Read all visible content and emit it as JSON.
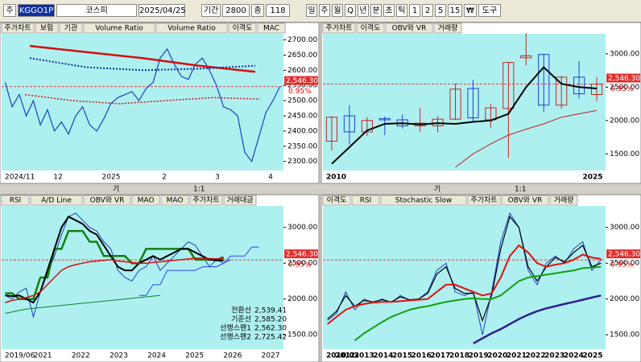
{
  "toolbar": [
    "주",
    "KGGO1P",
    "코스피",
    "2025/04/25",
    "기간",
    "2800",
    "종",
    "118",
    "일",
    "주",
    "월",
    "Q",
    "년",
    "분",
    "초",
    "틱",
    "1",
    "2",
    "5",
    "15",
    "₩",
    "도구"
  ],
  "scroll_labels": [
    "기",
    "1:1"
  ],
  "panes": [
    {
      "tabs": [
        "주가차트",
        "보험",
        "기관",
        "Volume Ratio",
        "Volume Ratio",
        "이격도",
        "MAC"
      ],
      "ylim": [
        2270,
        2720
      ],
      "yticks": [
        {
          "value": 2700,
          "label": "2700.00"
        },
        {
          "value": 2650,
          "label": "2650.00"
        },
        {
          "value": 2600,
          "label": "2600.00"
        },
        {
          "value": 2550,
          "label": "2550.00"
        },
        {
          "value": 2500,
          "label": "2500.00"
        },
        {
          "value": 2450,
          "label": "2450.00"
        },
        {
          "value": 2400,
          "label": "2400.00"
        },
        {
          "value": 2350,
          "label": "2350.00"
        },
        {
          "value": 2300,
          "label": "2300.00"
        }
      ],
      "xlabels": [
        "2024/11",
        "12",
        "2025",
        "2",
        "3",
        "4"
      ],
      "price": {
        "value": 2546.3,
        "label": "2,546.30"
      },
      "change": "0.95%",
      "lines": [
        {
          "color": "#2040c0",
          "width": 1.2,
          "values": [
            2560,
            2480,
            2520,
            2450,
            2500,
            2420,
            2470,
            2400,
            2430,
            2390,
            2450,
            2480,
            2420,
            2400,
            2440,
            2490,
            2510,
            2520,
            2530,
            2500,
            2540,
            2560,
            2640,
            2670,
            2620,
            2580,
            2570,
            2620,
            2640,
            2600,
            2550,
            2480,
            2470,
            2450,
            2330,
            2300,
            2380,
            2460,
            2500,
            2546.3
          ]
        },
        {
          "color": "#d01010",
          "width": 2.5,
          "values": [
            2680,
            2660,
            2640,
            2615,
            2595
          ]
        },
        {
          "color": "#1030a0",
          "width": 2,
          "dash": "2 2",
          "values": [
            2640,
            2610,
            2600,
            2605,
            2615
          ]
        },
        {
          "color": "#d01010",
          "width": 1.5,
          "dash": "2 2",
          "values": [
            2520,
            2500,
            2490,
            2500,
            2510,
            2505
          ]
        }
      ],
      "candles": []
    },
    {
      "tabs": [
        "주가차트",
        "이격도",
        "OBV와 VR",
        "거래량"
      ],
      "ylim": [
        1250,
        3300
      ],
      "yticks": [
        {
          "value": 3000,
          "label": "3000.00"
        },
        {
          "value": 2500,
          "label": "2500.00"
        },
        {
          "value": 2000,
          "label": "2000.00"
        },
        {
          "value": 1500,
          "label": "1500.00"
        }
      ],
      "xlabels": [
        "2010",
        "2025"
      ],
      "price": {
        "value": 2546.3,
        "label": "2,546.30"
      },
      "change": "0.95%",
      "lines": [
        {
          "color": "#000000",
          "width": 2,
          "values": [
            1350,
            1600,
            1850,
            1950,
            1960,
            1940,
            1960,
            1950,
            1980,
            2000,
            2100,
            2500,
            2800,
            2550,
            2500,
            2480
          ]
        },
        {
          "color": "#c02020",
          "width": 1,
          "values": [
            null,
            null,
            null,
            null,
            null,
            null,
            null,
            1300,
            1500,
            1650,
            1780,
            1870,
            1950,
            2050,
            2100,
            2150
          ]
        }
      ],
      "candles": [
        [
          1690,
          2060,
          1550,
          2050
        ],
        [
          2070,
          2230,
          1640,
          1830
        ],
        [
          1830,
          2050,
          1770,
          2000
        ],
        [
          2030,
          2060,
          1780,
          2010
        ],
        [
          2010,
          2090,
          1880,
          1920
        ],
        [
          1920,
          2190,
          1830,
          1960
        ],
        [
          1920,
          2070,
          1820,
          2020
        ],
        [
          2020,
          2560,
          2010,
          2470
        ],
        [
          2480,
          2610,
          1990,
          2040
        ],
        [
          2010,
          2250,
          1890,
          2190
        ],
        [
          2180,
          2870,
          1440,
          2870
        ],
        [
          2940,
          3310,
          2830,
          2970
        ],
        [
          2990,
          3000,
          2130,
          2230
        ],
        [
          2230,
          2670,
          2180,
          2650
        ],
        [
          2650,
          2890,
          2330,
          2400
        ],
        [
          2390,
          2650,
          2290,
          2546.3
        ]
      ]
    },
    {
      "tabs": [
        "RSI",
        "A/D Line",
        "OBV와 VR",
        "MAO",
        "MAO",
        "주가차트",
        "거래대금"
      ],
      "ylim": [
        1300,
        3300
      ],
      "yticks": [
        {
          "value": 3000,
          "label": "3000.00"
        },
        {
          "value": 2500,
          "label": "2500.00"
        },
        {
          "value": 2000,
          "label": "2000.00"
        },
        {
          "value": 1500,
          "label": "1500.00"
        }
      ],
      "xlabels": [
        "2019/06",
        "2021",
        "2022",
        "2023",
        "2024",
        "2025",
        "2026",
        "2027"
      ],
      "price": {
        "value": 2546.3,
        "label": "2,546.30"
      },
      "change": "0.95%",
      "lines": [
        {
          "color": "#2040c0",
          "width": 1,
          "values": [
            2050,
            2000,
            2100,
            2150,
            1750,
            2100,
            2350,
            2600,
            2900,
            3150,
            3200,
            3100,
            3000,
            2950,
            2800,
            2700,
            2400,
            2300,
            2250,
            2400,
            2450,
            2600,
            2400,
            2500,
            2600,
            2700,
            2800,
            2750,
            2600,
            2450,
            2550,
            2500,
            2546.3,
            null,
            null,
            null,
            null,
            null,
            null,
            null
          ]
        },
        {
          "color": "#108010",
          "width": 2.5,
          "values": [
            2080,
            2080,
            2000,
            2000,
            2000,
            2300,
            2300,
            2700,
            2700,
            2950,
            2950,
            2950,
            2800,
            2800,
            2600,
            2600,
            2600,
            2600,
            2500,
            2500,
            2700,
            2700,
            2700,
            2700,
            2700,
            2700,
            2700,
            2550,
            2550,
            2550,
            2550,
            2585.2,
            null,
            null,
            null,
            null,
            null,
            null,
            null,
            null
          ]
        },
        {
          "color": "#000000",
          "width": 2,
          "values": [
            2050,
            2040,
            2050,
            2000,
            1950,
            2100,
            2400,
            2700,
            3000,
            3150,
            3100,
            3050,
            2950,
            2900,
            2750,
            2600,
            2450,
            2400,
            2400,
            2500,
            2550,
            2600,
            2550,
            2600,
            2650,
            2700,
            2700,
            2650,
            2600,
            2550,
            2540,
            2539.41,
            null,
            null,
            null,
            null,
            null,
            null,
            null,
            null
          ]
        },
        {
          "color": "#d01010",
          "width": 1.5,
          "values": [
            1950,
            1980,
            2000,
            2020,
            2050,
            2100,
            2200,
            2300,
            2400,
            2450,
            2480,
            2500,
            2520,
            2530,
            2540,
            2550,
            2530,
            2520,
            2510,
            2500,
            2500,
            2510,
            2520,
            2530,
            2540,
            2550,
            2560,
            2570,
            2570,
            2565,
            2562.3,
            2562.3,
            null,
            null,
            null,
            null,
            null,
            null,
            null,
            null
          ]
        },
        {
          "color": "#3040ff",
          "width": 1,
          "values": [
            null,
            null,
            null,
            null,
            null,
            null,
            null,
            null,
            null,
            null,
            null,
            null,
            null,
            null,
            null,
            null,
            null,
            null,
            null,
            2050,
            2050,
            2200,
            2200,
            2400,
            2400,
            2400,
            2400,
            2400,
            2450,
            2450,
            2450,
            2500,
            2600,
            2600,
            2600,
            2725.42,
            2725.42,
            null,
            null,
            null
          ]
        },
        {
          "color": "#108030",
          "width": 1,
          "values": [
            1800,
            1820,
            1840,
            1860,
            1870,
            1880,
            1890,
            1900,
            1910,
            1920,
            1930,
            1940,
            1950,
            1960,
            1970,
            1980,
            1990,
            2000,
            2010,
            2020,
            2030,
            2040,
            2050,
            null,
            null,
            null,
            null,
            null,
            null,
            null,
            null,
            null,
            null,
            null,
            null,
            null,
            null,
            null,
            null,
            null
          ]
        }
      ],
      "candles": [],
      "legend": [
        {
          "name": "전환선",
          "value": 2539.41,
          "label": "2,539.41"
        },
        {
          "name": "기준선",
          "value": 2585.2,
          "label": "2,585.20"
        },
        {
          "name": "선행스팬1",
          "value": 2562.3,
          "label": "2,562.30"
        },
        {
          "name": "선행스팬2",
          "value": 2725.42,
          "label": "2,725.42"
        }
      ]
    },
    {
      "tabs": [
        "이격도",
        "RSI",
        "Stochastic Slow",
        "주가차트",
        "OBV와 VR",
        "거래량"
      ],
      "ylim": [
        1300,
        3300
      ],
      "yticks": [
        {
          "value": 3000,
          "label": "3000.00"
        },
        {
          "value": 2500,
          "label": "2500.00"
        },
        {
          "value": 2000,
          "label": "2000.00"
        },
        {
          "value": 1500,
          "label": "1500.00"
        }
      ],
      "xlabels": [
        "2010/03",
        "2012",
        "2013",
        "2014",
        "2015",
        "2016",
        "2017",
        "2018",
        "2019",
        "2020",
        "2021",
        "2022",
        "2023",
        "2024",
        "2025"
      ],
      "price": {
        "value": 2546.3,
        "label": "2,546.30"
      },
      "change": "0.95%",
      "lines": [
        {
          "color": "#2040c0",
          "width": 1,
          "values": [
            1700,
            1800,
            2100,
            1850,
            2000,
            1950,
            2000,
            1950,
            2050,
            1980,
            2000,
            2100,
            2400,
            2500,
            2100,
            2050,
            2100,
            1500,
            2100,
            2800,
            3200,
            3000,
            2400,
            2200,
            2500,
            2600,
            2500,
            2700,
            2800,
            2400,
            2546.3
          ]
        },
        {
          "color": "#000000",
          "width": 1.2,
          "values": [
            1720,
            1830,
            2050,
            1900,
            1980,
            1960,
            1990,
            1960,
            2030,
            1990,
            2000,
            2080,
            2350,
            2450,
            2150,
            2080,
            2080,
            1700,
            2050,
            2700,
            3150,
            3000,
            2450,
            2250,
            2450,
            2580,
            2520,
            2650,
            2750,
            2450,
            2500
          ]
        },
        {
          "color": "#e01010",
          "width": 2,
          "values": [
            1650,
            1750,
            1850,
            1900,
            1930,
            1950,
            1960,
            1960,
            1970,
            1980,
            1990,
            2000,
            2100,
            2200,
            2200,
            2150,
            2100,
            2050,
            2080,
            2300,
            2600,
            2750,
            2650,
            2500,
            2450,
            2480,
            2500,
            2550,
            2620,
            2580,
            2560
          ]
        },
        {
          "color": "#10a010",
          "width": 2,
          "values": [
            null,
            null,
            null,
            1420,
            1520,
            1600,
            1680,
            1750,
            1800,
            1850,
            1880,
            1900,
            1930,
            1960,
            1980,
            2000,
            2010,
            2000,
            2000,
            2050,
            2150,
            2250,
            2300,
            2320,
            2340,
            2360,
            2380,
            2400,
            2430,
            2440,
            2450
          ]
        },
        {
          "color": "#302090",
          "width": 2.5,
          "values": [
            null,
            null,
            null,
            null,
            null,
            null,
            null,
            null,
            null,
            null,
            null,
            null,
            null,
            null,
            null,
            null,
            1380,
            1450,
            1520,
            1580,
            1650,
            1720,
            1780,
            1830,
            1870,
            1900,
            1930,
            1960,
            1990,
            2020,
            2050
          ]
        }
      ],
      "candles": []
    }
  ]
}
